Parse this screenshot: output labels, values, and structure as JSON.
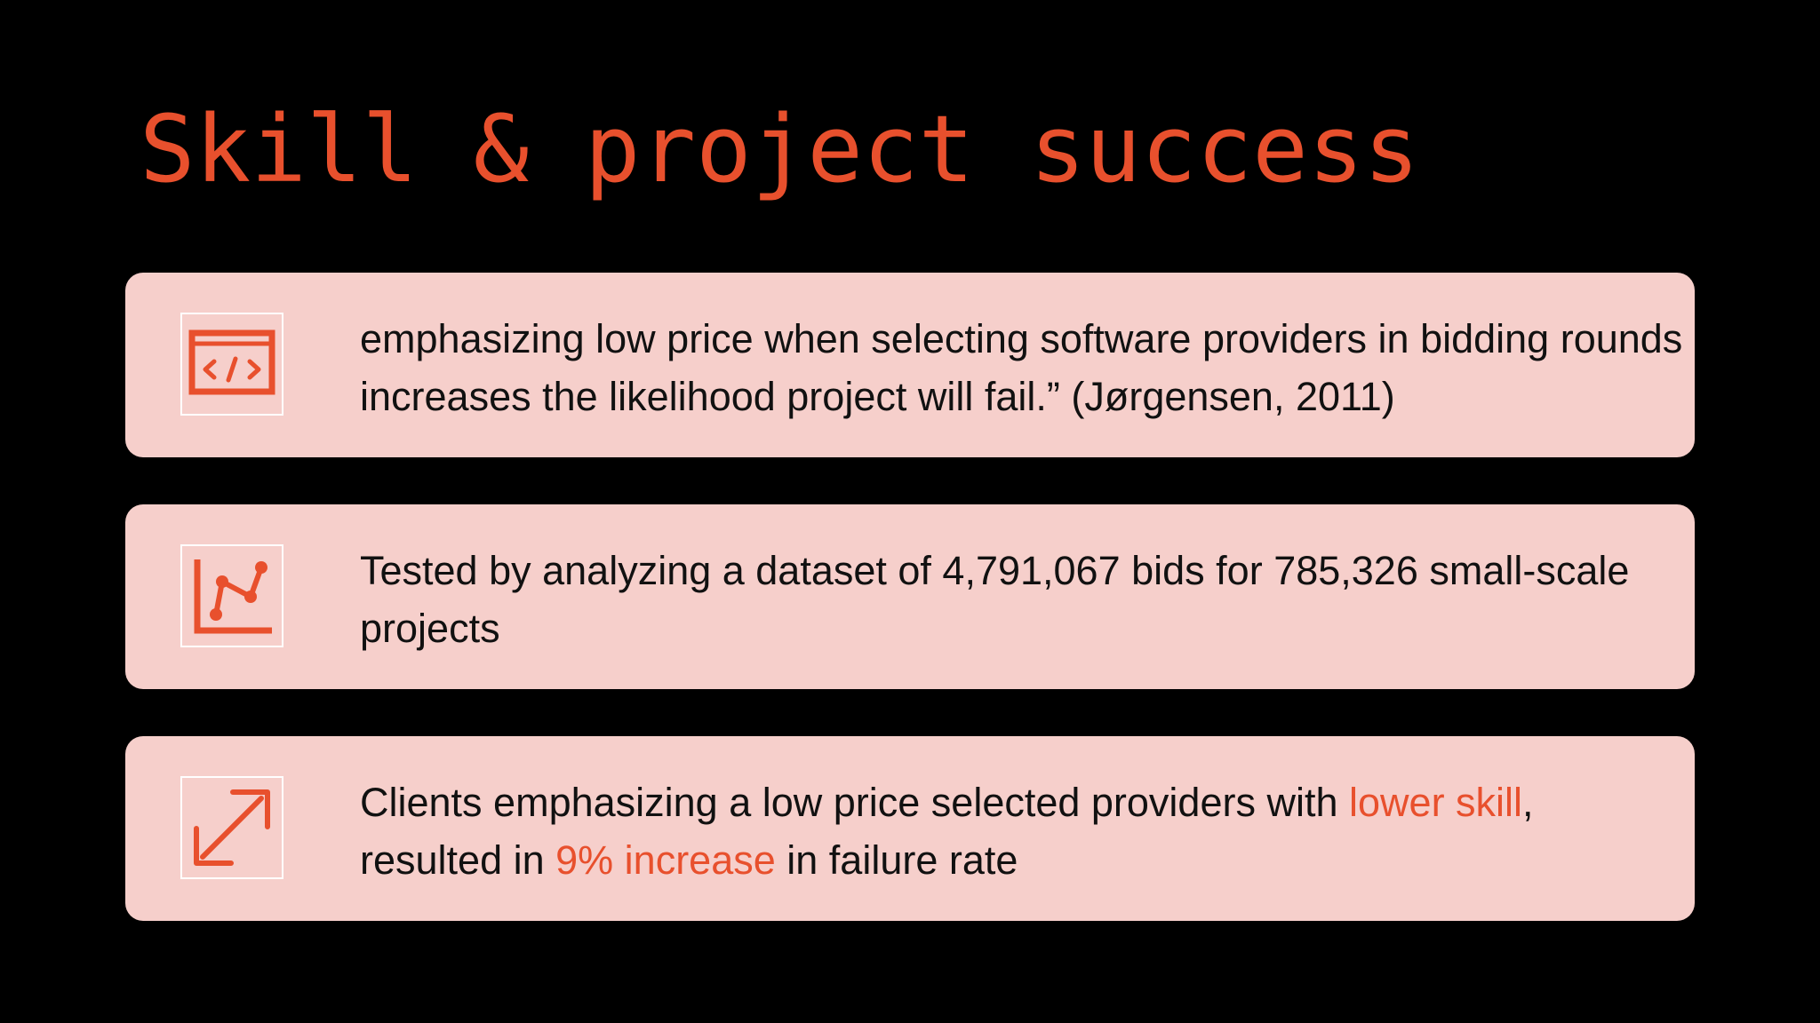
{
  "slide": {
    "title": "Skill & project success",
    "accent_color": "#e8502d",
    "card_color": "#f6cfcb",
    "background_color": "#000000"
  },
  "cards": [
    {
      "icon": "code-window-icon",
      "text": "emphasizing low price when selecting software providers in bidding rounds increases the likelihood project will fail.” (Jørgensen, 2011)"
    },
    {
      "icon": "line-chart-icon",
      "text": "Tested by analyzing a dataset of 4,791,067 bids for 785,326 small-scale projects"
    },
    {
      "icon": "diagonal-double-arrow-icon",
      "segments": {
        "a": "Clients emphasizing a low price selected providers with ",
        "b": "lower skill",
        "c": ", resulted in ",
        "d": "9% increase",
        "e": " in failure rate"
      }
    }
  ]
}
